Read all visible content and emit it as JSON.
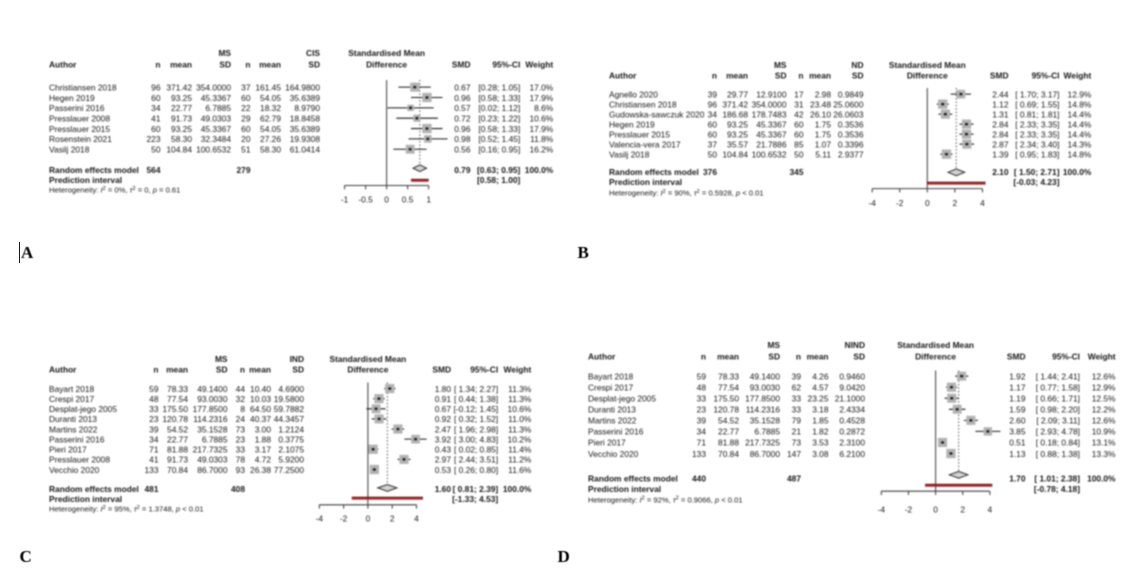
{
  "figure": {
    "panel_labels": [
      "A",
      "B",
      "C",
      "D"
    ],
    "colors": {
      "background": "#ffffff",
      "text": "#161616",
      "axis_line": "#3d3d3d",
      "zero_line": "#4a4a4a",
      "ci_line": "#161616",
      "dotted_line": "#3f3f3f",
      "square_fill": "#b3b3b3",
      "square_center": "#141414",
      "diamond_fill": "#d2d2d2",
      "diamond_stroke": "#2a2a2a",
      "prediction_bar_dark": "#5a1013",
      "prediction_bar_bright": "#bf2026"
    }
  },
  "chart_data": [
    {
      "type": "forest",
      "panel": "A",
      "header": {
        "author": "Author",
        "n": "n",
        "mean": "mean",
        "sd": "SD",
        "group1": "MS",
        "group2": "CIS",
        "plot_line1": "Standardised Mean",
        "plot_line2": "Difference",
        "smd": "SMD",
        "ci": "95%-CI",
        "weight": "Weight"
      },
      "studies": [
        {
          "author": "Christiansen 2018",
          "n1": "96",
          "mean1": "371.42",
          "sd1": "354.0000",
          "n2": "37",
          "mean2": "161.45",
          "sd2": "164.9800",
          "smd": 0.67,
          "lo": 0.28,
          "hi": 1.05,
          "smd_text": "0.67",
          "ci_text": "[0.28; 1.05]",
          "weight_text": "17.0%",
          "weight": 17.0
        },
        {
          "author": "Hegen 2019",
          "n1": "60",
          "mean1": "93.25",
          "sd1": "45.3367",
          "n2": "60",
          "mean2": "54.05",
          "sd2": "35.6389",
          "smd": 0.96,
          "lo": 0.58,
          "hi": 1.33,
          "smd_text": "0.96",
          "ci_text": "[0.58; 1.33]",
          "weight_text": "17.9%",
          "weight": 17.9
        },
        {
          "author": "Passerini 2016",
          "n1": "34",
          "mean1": "22.77",
          "sd1": "6.7885",
          "n2": "22",
          "mean2": "18.32",
          "sd2": "8.9790",
          "smd": 0.57,
          "lo": 0.02,
          "hi": 1.12,
          "smd_text": "0.57",
          "ci_text": "[0.02; 1.12]",
          "weight_text": "8.6%",
          "weight": 8.6
        },
        {
          "author": "Presslauer 2008",
          "n1": "41",
          "mean1": "91.73",
          "sd1": "49.0303",
          "n2": "29",
          "mean2": "62.79",
          "sd2": "18.8458",
          "smd": 0.72,
          "lo": 0.23,
          "hi": 1.22,
          "smd_text": "0.72",
          "ci_text": "[0.23; 1.22]",
          "weight_text": "10.6%",
          "weight": 10.6
        },
        {
          "author": "Presslauer 2015",
          "n1": "60",
          "mean1": "93.25",
          "sd1": "45.3367",
          "n2": "60",
          "mean2": "54.05",
          "sd2": "35.6389",
          "smd": 0.96,
          "lo": 0.58,
          "hi": 1.33,
          "smd_text": "0.96",
          "ci_text": "[0.58; 1.33]",
          "weight_text": "17.9%",
          "weight": 17.9
        },
        {
          "author": "Rosenstein 2021",
          "n1": "223",
          "mean1": "58.30",
          "sd1": "32.3484",
          "n2": "20",
          "mean2": "27.26",
          "sd2": "19.9308",
          "smd": 0.98,
          "lo": 0.52,
          "hi": 1.45,
          "smd_text": "0.98",
          "ci_text": "[0.52; 1.45]",
          "weight_text": "11.8%",
          "weight": 11.8
        },
        {
          "author": "Vasilj 2018",
          "n1": "50",
          "mean1": "104.84",
          "sd1": "100.6532",
          "n2": "51",
          "mean2": "58.30",
          "sd2": "61.0414",
          "smd": 0.56,
          "lo": 0.16,
          "hi": 0.95,
          "smd_text": "0.56",
          "ci_text": "[0.16; 0.95]",
          "weight_text": "16.2%",
          "weight": 16.2
        }
      ],
      "pooled": {
        "label": "Random effects model",
        "n1": "564",
        "n2": "279",
        "smd": 0.79,
        "lo": 0.63,
        "hi": 0.95,
        "smd_text": "0.79",
        "ci_text": "[0.63; 0.95]",
        "weight_text": "100.0%"
      },
      "prediction": {
        "label": "Prediction interval",
        "lo": 0.58,
        "hi": 1.0,
        "ci_text": "[0.58; 1.00]"
      },
      "heterogeneity": [
        {
          "t": "Heterogeneity: "
        },
        {
          "t": "I",
          "italic": true
        },
        {
          "t": "2",
          "sup": true
        },
        {
          "t": " = 0%, "
        },
        {
          "t": "τ",
          "italic": true
        },
        {
          "t": "2",
          "sup": true
        },
        {
          "t": " = 0, "
        },
        {
          "t": "p",
          "italic": true
        },
        {
          "t": " = 0.61"
        }
      ],
      "axis": {
        "ticks": [
          -1,
          -0.5,
          0,
          0.5,
          1
        ],
        "labels": [
          "-1",
          "-0.5",
          "0",
          "0.5",
          "1"
        ]
      }
    },
    {
      "type": "forest",
      "panel": "B",
      "header": {
        "author": "Author",
        "n": "n",
        "mean": "mean",
        "sd": "SD",
        "group1": "MS",
        "group2": "ND",
        "plot_line1": "Standardised Mean",
        "plot_line2": "Difference",
        "smd": "SMD",
        "ci": "95%-CI",
        "weight": "Weight"
      },
      "studies": [
        {
          "author": "Agnello 2020",
          "n1": "39",
          "mean1": "29.77",
          "sd1": "12.9100",
          "n2": "17",
          "mean2": "2.98",
          "sd2": "0.9849",
          "smd": 2.44,
          "lo": 1.7,
          "hi": 3.17,
          "smd_text": "2.44",
          "ci_text": "[ 1.70; 3.17]",
          "weight_text": "12.9%",
          "weight": 12.9
        },
        {
          "author": "Christiansen 2018",
          "n1": "96",
          "mean1": "371.42",
          "sd1": "354.0000",
          "n2": "31",
          "mean2": "23.48",
          "sd2": "25.0600",
          "smd": 1.12,
          "lo": 0.69,
          "hi": 1.55,
          "smd_text": "1.12",
          "ci_text": "[ 0.69; 1.55]",
          "weight_text": "14.8%",
          "weight": 14.8
        },
        {
          "author": "Gudowska-sawczuk 2020",
          "n1": "34",
          "mean1": "186.68",
          "sd1": "178.7483",
          "n2": "42",
          "mean2": "26.10",
          "sd2": "26.0603",
          "smd": 1.31,
          "lo": 0.81,
          "hi": 1.81,
          "smd_text": "1.31",
          "ci_text": "[ 0.81; 1.81]",
          "weight_text": "14.4%",
          "weight": 14.4
        },
        {
          "author": "Hegen 2019",
          "n1": "60",
          "mean1": "93.25",
          "sd1": "45.3367",
          "n2": "60",
          "mean2": "1.75",
          "sd2": "0.3536",
          "smd": 2.84,
          "lo": 2.33,
          "hi": 3.35,
          "smd_text": "2.84",
          "ci_text": "[ 2.33; 3.35]",
          "weight_text": "14.4%",
          "weight": 14.4
        },
        {
          "author": "Presslauer 2015",
          "n1": "60",
          "mean1": "93.25",
          "sd1": "45.3367",
          "n2": "60",
          "mean2": "1.75",
          "sd2": "0.3536",
          "smd": 2.84,
          "lo": 2.33,
          "hi": 3.35,
          "smd_text": "2.84",
          "ci_text": "[ 2.33; 3.35]",
          "weight_text": "14.4%",
          "weight": 14.4
        },
        {
          "author": "Valencia-vera 2017",
          "n1": "37",
          "mean1": "35.57",
          "sd1": "21.7886",
          "n2": "85",
          "mean2": "1.07",
          "sd2": "0.3396",
          "smd": 2.87,
          "lo": 2.34,
          "hi": 3.4,
          "smd_text": "2.87",
          "ci_text": "[ 2.34; 3.40]",
          "weight_text": "14.3%",
          "weight": 14.3
        },
        {
          "author": "Vasilj 2018",
          "n1": "50",
          "mean1": "104.84",
          "sd1": "100.6532",
          "n2": "50",
          "mean2": "5.11",
          "sd2": "2.9377",
          "smd": 1.39,
          "lo": 0.95,
          "hi": 1.83,
          "smd_text": "1.39",
          "ci_text": "[ 0.95; 1.83]",
          "weight_text": "14.8%",
          "weight": 14.8
        }
      ],
      "pooled": {
        "label": "Random effects model",
        "n1": "376",
        "n2": "345",
        "smd": 2.1,
        "lo": 1.5,
        "hi": 2.71,
        "smd_text": "2.10",
        "ci_text": "[ 1.50; 2.71]",
        "weight_text": "100.0%"
      },
      "prediction": {
        "label": "Prediction interval",
        "lo": -0.03,
        "hi": 4.23,
        "ci_text": "[-0.03; 4.23]"
      },
      "heterogeneity": [
        {
          "t": "Heterogeneity: "
        },
        {
          "t": "I",
          "italic": true
        },
        {
          "t": "2",
          "sup": true
        },
        {
          "t": " = 90%, "
        },
        {
          "t": "τ",
          "italic": true
        },
        {
          "t": "2",
          "sup": true
        },
        {
          "t": " = 0.5928, "
        },
        {
          "t": "p",
          "italic": true
        },
        {
          "t": " < 0.01"
        }
      ],
      "axis": {
        "ticks": [
          -4,
          -2,
          0,
          2,
          4
        ],
        "labels": [
          "-4",
          "-2",
          "0",
          "2",
          "4"
        ]
      }
    },
    {
      "type": "forest",
      "panel": "C",
      "header": {
        "author": "Author",
        "n": "n",
        "mean": "mean",
        "sd": "SD",
        "group1": "MS",
        "group2": "IND",
        "plot_line1": "Standardised Mean",
        "plot_line2": "Difference",
        "smd": "SMD",
        "ci": "95%-CI",
        "weight": "Weight"
      },
      "studies": [
        {
          "author": "Bayart 2018",
          "n1": "59",
          "mean1": "78.33",
          "sd1": "49.1400",
          "n2": "44",
          "mean2": "10.40",
          "sd2": "4.6900",
          "smd": 1.8,
          "lo": 1.34,
          "hi": 2.27,
          "smd_text": "1.80",
          "ci_text": "[ 1.34; 2.27]",
          "weight_text": "11.3%",
          "weight": 11.3
        },
        {
          "author": "Crespi 2017",
          "n1": "48",
          "mean1": "77.54",
          "sd1": "93.0030",
          "n2": "32",
          "mean2": "10.03",
          "sd2": "19.5800",
          "smd": 0.91,
          "lo": 0.44,
          "hi": 1.38,
          "smd_text": "0.91",
          "ci_text": "[ 0.44; 1.38]",
          "weight_text": "11.3%",
          "weight": 11.3
        },
        {
          "author": "Desplat-jego 2005",
          "n1": "33",
          "mean1": "175.50",
          "sd1": "177.8500",
          "n2": "8",
          "mean2": "64.50",
          "sd2": "59.7882",
          "smd": 0.67,
          "lo": -0.12,
          "hi": 1.45,
          "smd_text": "0.67",
          "ci_text": "[-0.12; 1.45]",
          "weight_text": "10.6%",
          "weight": 10.6
        },
        {
          "author": "Duranti 2013",
          "n1": "23",
          "mean1": "120.78",
          "sd1": "114.2316",
          "n2": "24",
          "mean2": "40.37",
          "sd2": "44.3457",
          "smd": 0.92,
          "lo": 0.32,
          "hi": 1.52,
          "smd_text": "0.92",
          "ci_text": "[ 0.32; 1.52]",
          "weight_text": "11.0%",
          "weight": 11.0
        },
        {
          "author": "Martins 2022",
          "n1": "39",
          "mean1": "54.52",
          "sd1": "35.1528",
          "n2": "73",
          "mean2": "3.00",
          "sd2": "1.2124",
          "smd": 2.47,
          "lo": 1.96,
          "hi": 2.98,
          "smd_text": "2.47",
          "ci_text": "[ 1.96; 2.98]",
          "weight_text": "11.3%",
          "weight": 11.3
        },
        {
          "author": "Passerini 2016",
          "n1": "34",
          "mean1": "22.77",
          "sd1": "6.7885",
          "n2": "23",
          "mean2": "1.88",
          "sd2": "0.3775",
          "smd": 3.92,
          "lo": 3.0,
          "hi": 4.83,
          "smd_text": "3.92",
          "ci_text": "[ 3.00; 4.83]",
          "weight_text": "10.2%",
          "weight": 10.2
        },
        {
          "author": "Pieri 2017",
          "n1": "71",
          "mean1": "81.88",
          "sd1": "217.7325",
          "n2": "33",
          "mean2": "3.17",
          "sd2": "2.1075",
          "smd": 0.43,
          "lo": 0.02,
          "hi": 0.85,
          "smd_text": "0.43",
          "ci_text": "[ 0.02; 0.85]",
          "weight_text": "11.4%",
          "weight": 11.4
        },
        {
          "author": "Presslauer 2008",
          "n1": "41",
          "mean1": "91.73",
          "sd1": "49.0303",
          "n2": "78",
          "mean2": "4.72",
          "sd2": "5.9200",
          "smd": 2.97,
          "lo": 2.44,
          "hi": 3.51,
          "smd_text": "2.97",
          "ci_text": "[ 2.44; 3.51]",
          "weight_text": "11.2%",
          "weight": 11.2
        },
        {
          "author": "Vecchio 2020",
          "n1": "133",
          "mean1": "70.84",
          "sd1": "86.7000",
          "n2": "93",
          "mean2": "26.38",
          "sd2": "77.2500",
          "smd": 0.53,
          "lo": 0.26,
          "hi": 0.8,
          "smd_text": "0.53",
          "ci_text": "[ 0.26; 0.80]",
          "weight_text": "11.6%",
          "weight": 11.6
        }
      ],
      "pooled": {
        "label": "Random effects model",
        "n1": "481",
        "n2": "408",
        "smd": 1.6,
        "lo": 0.81,
        "hi": 2.39,
        "smd_text": "1.60",
        "ci_text": "[ 0.81; 2.39]",
        "weight_text": "100.0%"
      },
      "prediction": {
        "label": "Prediction interval",
        "lo": -1.33,
        "hi": 4.53,
        "ci_text": "[-1.33; 4.53]"
      },
      "heterogeneity": [
        {
          "t": "Heterogeneity: "
        },
        {
          "t": "I",
          "italic": true
        },
        {
          "t": "2",
          "sup": true
        },
        {
          "t": " = 95%, "
        },
        {
          "t": "τ",
          "italic": true
        },
        {
          "t": "2",
          "sup": true
        },
        {
          "t": " = 1.3748, "
        },
        {
          "t": "p",
          "italic": true
        },
        {
          "t": " < 0.01"
        }
      ],
      "axis": {
        "ticks": [
          -4,
          -2,
          0,
          2,
          4
        ],
        "labels": [
          "-4",
          "-2",
          "0",
          "2",
          "4"
        ]
      }
    },
    {
      "type": "forest",
      "panel": "D",
      "header": {
        "author": "Author",
        "n": "n",
        "mean": "mean",
        "sd": "SD",
        "group1": "MS",
        "group2": "NIND",
        "plot_line1": "Standardised Mean",
        "plot_line2": "Difference",
        "smd": "SMD",
        "ci": "95%-CI",
        "weight": "Weight"
      },
      "studies": [
        {
          "author": "Bayart 2018",
          "n1": "59",
          "mean1": "78.33",
          "sd1": "49.1400",
          "n2": "39",
          "mean2": "4.26",
          "sd2": "0.9460",
          "smd": 1.92,
          "lo": 1.44,
          "hi": 2.41,
          "smd_text": "1.92",
          "ci_text": "[ 1.44; 2.41]",
          "weight_text": "12.6%",
          "weight": 12.6
        },
        {
          "author": "Crespi 2017",
          "n1": "48",
          "mean1": "77.54",
          "sd1": "93.0030",
          "n2": "62",
          "mean2": "4.57",
          "sd2": "9.0420",
          "smd": 1.17,
          "lo": 0.77,
          "hi": 1.58,
          "smd_text": "1.17",
          "ci_text": "[ 0.77; 1.58]",
          "weight_text": "12.9%",
          "weight": 12.9
        },
        {
          "author": "Desplat-jego 2005",
          "n1": "33",
          "mean1": "175.50",
          "sd1": "177.8500",
          "n2": "33",
          "mean2": "23.25",
          "sd2": "21.1000",
          "smd": 1.19,
          "lo": 0.66,
          "hi": 1.71,
          "smd_text": "1.19",
          "ci_text": "[ 0.66; 1.71]",
          "weight_text": "12.5%",
          "weight": 12.5
        },
        {
          "author": "Duranti 2013",
          "n1": "23",
          "mean1": "120.78",
          "sd1": "114.2316",
          "n2": "33",
          "mean2": "3.18",
          "sd2": "2.4334",
          "smd": 1.59,
          "lo": 0.98,
          "hi": 2.2,
          "smd_text": "1.59",
          "ci_text": "[ 0.98; 2.20]",
          "weight_text": "12.2%",
          "weight": 12.2
        },
        {
          "author": "Martins 2022",
          "n1": "39",
          "mean1": "54.52",
          "sd1": "35.1528",
          "n2": "79",
          "mean2": "1.85",
          "sd2": "0.4528",
          "smd": 2.6,
          "lo": 2.09,
          "hi": 3.11,
          "smd_text": "2.60",
          "ci_text": "[ 2.09; 3.11]",
          "weight_text": "12.6%",
          "weight": 12.6
        },
        {
          "author": "Passerini 2016",
          "n1": "34",
          "mean1": "22.77",
          "sd1": "6.7885",
          "n2": "21",
          "mean2": "1.82",
          "sd2": "0.2872",
          "smd": 3.85,
          "lo": 2.93,
          "hi": 4.78,
          "smd_text": "3.85",
          "ci_text": "[ 2.93; 4.78]",
          "weight_text": "10.9%",
          "weight": 10.9
        },
        {
          "author": "Pieri 2017",
          "n1": "71",
          "mean1": "81.88",
          "sd1": "217.7325",
          "n2": "73",
          "mean2": "3.53",
          "sd2": "2.3100",
          "smd": 0.51,
          "lo": 0.18,
          "hi": 0.84,
          "smd_text": "0.51",
          "ci_text": "[ 0.18; 0.84]",
          "weight_text": "13.1%",
          "weight": 13.1
        },
        {
          "author": "Vecchio 2020",
          "n1": "133",
          "mean1": "70.84",
          "sd1": "86.7000",
          "n2": "147",
          "mean2": "3.08",
          "sd2": "6.2100",
          "smd": 1.13,
          "lo": 0.88,
          "hi": 1.38,
          "smd_text": "1.13",
          "ci_text": "[ 0.88; 1.38]",
          "weight_text": "13.3%",
          "weight": 13.3
        }
      ],
      "pooled": {
        "label": "Random effects model",
        "n1": "440",
        "n2": "487",
        "smd": 1.7,
        "lo": 1.01,
        "hi": 2.38,
        "smd_text": "1.70",
        "ci_text": "[ 1.01; 2.38]",
        "weight_text": "100.0%"
      },
      "prediction": {
        "label": "Prediction interval",
        "lo": -0.78,
        "hi": 4.18,
        "ci_text": "[-0.78; 4.18]"
      },
      "heterogeneity": [
        {
          "t": "Heterogeneity: "
        },
        {
          "t": "I",
          "italic": true
        },
        {
          "t": "2",
          "sup": true
        },
        {
          "t": " = 92%, "
        },
        {
          "t": "τ",
          "italic": true
        },
        {
          "t": "2",
          "sup": true
        },
        {
          "t": " = 0.9066, "
        },
        {
          "t": "p",
          "italic": true
        },
        {
          "t": " < 0.01"
        }
      ],
      "axis": {
        "ticks": [
          -4,
          -2,
          0,
          2,
          4
        ],
        "labels": [
          "-4",
          "-2",
          "0",
          "2",
          "4"
        ]
      }
    }
  ]
}
